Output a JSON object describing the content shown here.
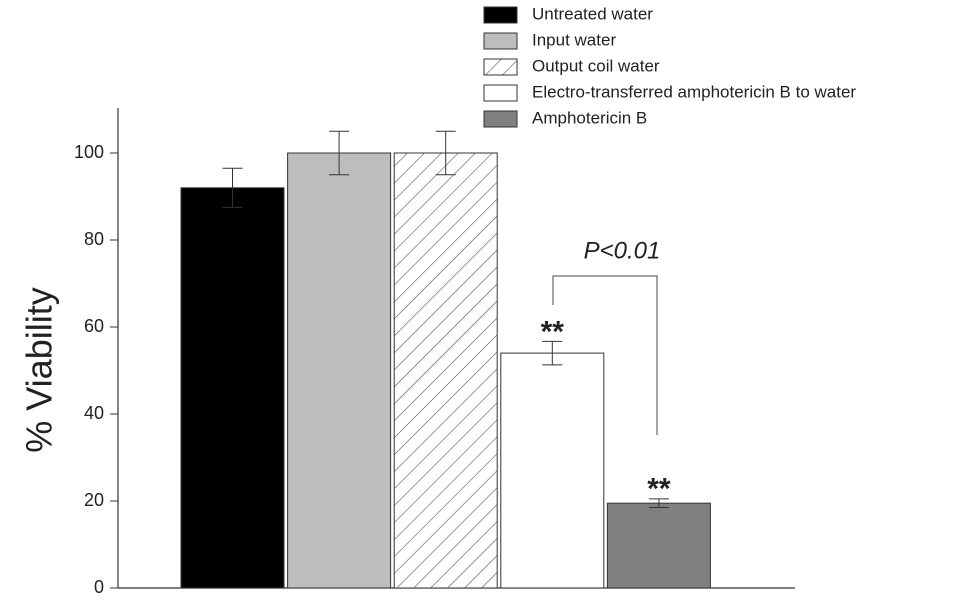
{
  "chart_data": {
    "type": "bar",
    "y_label": "% Viability",
    "categories": [
      null
    ],
    "series": [
      {
        "name": "Untreated water",
        "color": "#000000",
        "values": [
          92
        ],
        "errors": [
          4.5
        ]
      },
      {
        "name": "Input water",
        "color": "#bdbdbd",
        "values": [
          100
        ],
        "errors": [
          5
        ]
      },
      {
        "name": "Output coil water",
        "color": "#ffffff",
        "hatch": true,
        "values": [
          100
        ],
        "errors": [
          5
        ]
      },
      {
        "name": "Electro-transferred amphotericin B to water",
        "color": "#ffffff",
        "values": [
          54
        ],
        "errors": [
          2.7
        ]
      },
      {
        "name": "Amphotericin B",
        "color": "#808080",
        "values": [
          19.5
        ],
        "errors": [
          1
        ]
      }
    ],
    "significance": [
      "**",
      "**"
    ],
    "p_value": "P<0.01",
    "ylim": [
      0,
      110
    ],
    "yticks": [
      0,
      20,
      40,
      60,
      80,
      100
    ]
  }
}
